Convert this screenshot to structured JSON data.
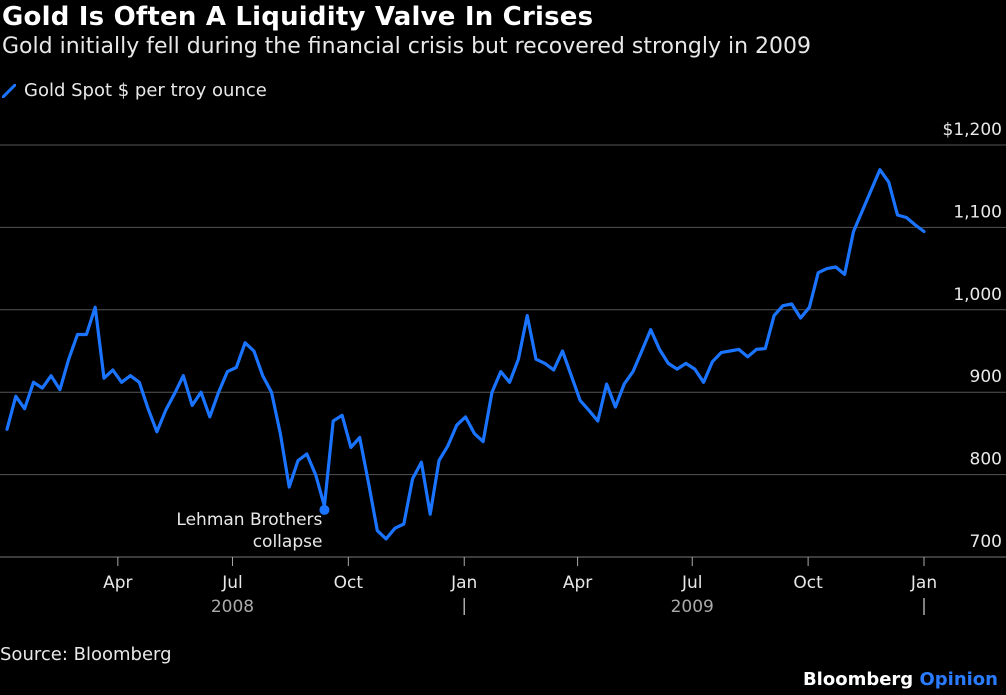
{
  "header": {
    "title": "Gold Is Often A Liquidity Valve In Crises",
    "subtitle": "Gold initially fell during the financial crisis but recovered strongly in 2009"
  },
  "footer": {
    "source": "Source: Bloomberg",
    "brand_primary": "Bloomberg",
    "brand_secondary": "Opinion"
  },
  "colors": {
    "background": "#000000",
    "line": "#1a74ff",
    "grid": "#555555",
    "text": "#e8e8e8"
  },
  "chart_data": {
    "type": "line",
    "title": "Gold Is Often A Liquidity Valve In Crises",
    "xlabel": "",
    "ylabel": "",
    "grid": true,
    "legend_placement": "top-left",
    "ylim": [
      700,
      1200
    ],
    "xlim": [
      "2008-01-04",
      "2010-01-01"
    ],
    "y_ticks": [
      700,
      800,
      900,
      1000,
      1100,
      1200
    ],
    "y_tick_labels": [
      "700",
      "800",
      "900",
      "1,000",
      "1,100",
      "$1,200"
    ],
    "x_ticks": [
      {
        "date": "2008-04-01",
        "label": "Apr"
      },
      {
        "date": "2008-07-01",
        "label": "Jul"
      },
      {
        "date": "2008-10-01",
        "label": "Oct"
      },
      {
        "date": "2009-01-01",
        "label": "Jan"
      },
      {
        "date": "2009-04-01",
        "label": "Apr"
      },
      {
        "date": "2009-07-01",
        "label": "Jul"
      },
      {
        "date": "2009-10-01",
        "label": "Oct"
      },
      {
        "date": "2010-01-01",
        "label": "Jan"
      }
    ],
    "x_year_labels": [
      {
        "date": "2008-07-01",
        "label": "2008"
      },
      {
        "date": "2009-07-01",
        "label": "2009"
      }
    ],
    "x_year_separators": [
      "2009-01-01",
      "2010-01-01"
    ],
    "series": [
      {
        "name": "Gold Spot $ per troy ounce",
        "x": [
          "2008-01-04",
          "2008-01-11",
          "2008-01-18",
          "2008-01-25",
          "2008-02-01",
          "2008-02-08",
          "2008-02-15",
          "2008-02-22",
          "2008-02-29",
          "2008-03-07",
          "2008-03-14",
          "2008-03-21",
          "2008-03-28",
          "2008-04-04",
          "2008-04-11",
          "2008-04-18",
          "2008-04-25",
          "2008-05-02",
          "2008-05-09",
          "2008-05-16",
          "2008-05-23",
          "2008-05-30",
          "2008-06-06",
          "2008-06-13",
          "2008-06-20",
          "2008-06-27",
          "2008-07-04",
          "2008-07-11",
          "2008-07-18",
          "2008-07-25",
          "2008-08-01",
          "2008-08-08",
          "2008-08-15",
          "2008-08-22",
          "2008-08-29",
          "2008-09-05",
          "2008-09-12",
          "2008-09-19",
          "2008-09-26",
          "2008-10-03",
          "2008-10-10",
          "2008-10-17",
          "2008-10-24",
          "2008-10-31",
          "2008-11-07",
          "2008-11-14",
          "2008-11-21",
          "2008-11-28",
          "2008-12-05",
          "2008-12-12",
          "2008-12-19",
          "2008-12-26",
          "2009-01-02",
          "2009-01-09",
          "2009-01-16",
          "2009-01-23",
          "2009-01-30",
          "2009-02-06",
          "2009-02-13",
          "2009-02-20",
          "2009-02-27",
          "2009-03-06",
          "2009-03-13",
          "2009-03-20",
          "2009-03-27",
          "2009-04-03",
          "2009-04-10",
          "2009-04-17",
          "2009-04-24",
          "2009-05-01",
          "2009-05-08",
          "2009-05-15",
          "2009-05-22",
          "2009-05-29",
          "2009-06-05",
          "2009-06-12",
          "2009-06-19",
          "2009-06-26",
          "2009-07-03",
          "2009-07-10",
          "2009-07-17",
          "2009-07-24",
          "2009-07-31",
          "2009-08-07",
          "2009-08-14",
          "2009-08-21",
          "2009-08-28",
          "2009-09-04",
          "2009-09-11",
          "2009-09-18",
          "2009-09-25",
          "2009-10-02",
          "2009-10-09",
          "2009-10-16",
          "2009-10-23",
          "2009-10-30",
          "2009-11-06",
          "2009-11-13",
          "2009-11-20",
          "2009-11-27",
          "2009-12-04",
          "2009-12-11",
          "2009-12-18",
          "2009-12-25",
          "2010-01-01"
        ],
        "values": [
          855,
          895,
          880,
          912,
          905,
          920,
          903,
          940,
          970,
          970,
          1003,
          917,
          927,
          912,
          920,
          912,
          880,
          852,
          878,
          898,
          920,
          884,
          900,
          870,
          900,
          925,
          930,
          960,
          950,
          920,
          900,
          850,
          785,
          817,
          825,
          800,
          762,
          865,
          872,
          833,
          845,
          790,
          732,
          722,
          735,
          740,
          795,
          815,
          752,
          817,
          835,
          860,
          870,
          850,
          840,
          900,
          925,
          912,
          940,
          993,
          940,
          935,
          927,
          950,
          920,
          890,
          878,
          865,
          910,
          882,
          910,
          925,
          950,
          976,
          952,
          935,
          928,
          935,
          928,
          912,
          937,
          948,
          950,
          952,
          943,
          952,
          953,
          993,
          1005,
          1007,
          990,
          1003,
          1045,
          1050,
          1052,
          1043,
          1095,
          1120,
          1145,
          1170,
          1155,
          1115,
          1112,
          1103,
          1095
        ]
      }
    ],
    "annotations": [
      {
        "text_lines": [
          "Lehman Brothers",
          "collapse"
        ],
        "x": "2008-09-12",
        "y": 762
      }
    ]
  }
}
